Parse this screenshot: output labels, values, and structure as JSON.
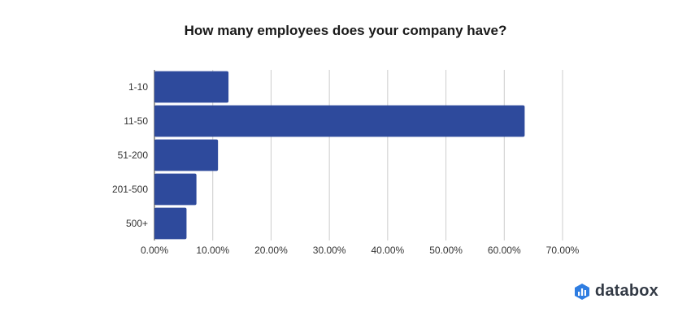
{
  "chart_data": {
    "type": "bar",
    "orientation": "horizontal",
    "title": "How many employees does your company have?",
    "categories": [
      "1-10",
      "11-50",
      "51-200",
      "201-500",
      "500+"
    ],
    "values": [
      12.7,
      63.5,
      10.9,
      7.2,
      5.5
    ],
    "xlim": [
      0,
      70
    ],
    "x_ticks": [
      "0.00%",
      "10.00%",
      "20.00%",
      "30.00%",
      "40.00%",
      "50.00%",
      "60.00%",
      "70.00%"
    ],
    "grid": true,
    "bar_color": "#2e4a9c"
  },
  "brand": {
    "name": "databox",
    "icon": "databox-logo-icon",
    "color": "#2f7de1"
  }
}
